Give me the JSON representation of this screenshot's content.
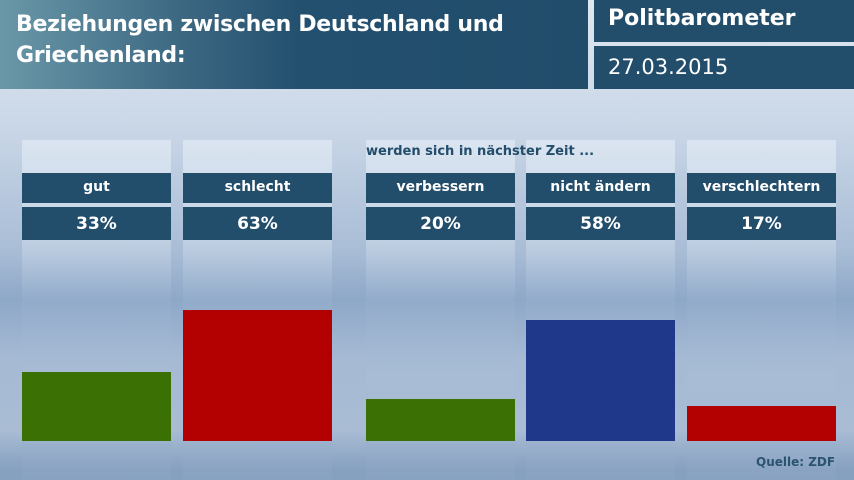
{
  "header": {
    "title": "Beziehungen zwischen Deutschland und Griechenland:",
    "brand": "Politbarometer",
    "date": "27.03.2015"
  },
  "footer": {
    "source": "Quelle: ZDF"
  },
  "chart_data": {
    "type": "bar",
    "title": "Beziehungen zwischen Deutschland und Griechenland:",
    "group_label": "werden sich in nächster Zeit ...",
    "categories": [
      "gut",
      "schlecht",
      "verbessern",
      "nicht ändern",
      "verschlechtern"
    ],
    "values": [
      33,
      63,
      20,
      58,
      17
    ],
    "value_labels": [
      "33%",
      "63%",
      "20%",
      "58%",
      "17%"
    ],
    "colors": [
      "#3b7004",
      "#b30000",
      "#3b7004",
      "#1f388a",
      "#b30000"
    ],
    "unit": "%",
    "ylim": [
      0,
      100
    ],
    "grid": false,
    "legend": "none"
  }
}
